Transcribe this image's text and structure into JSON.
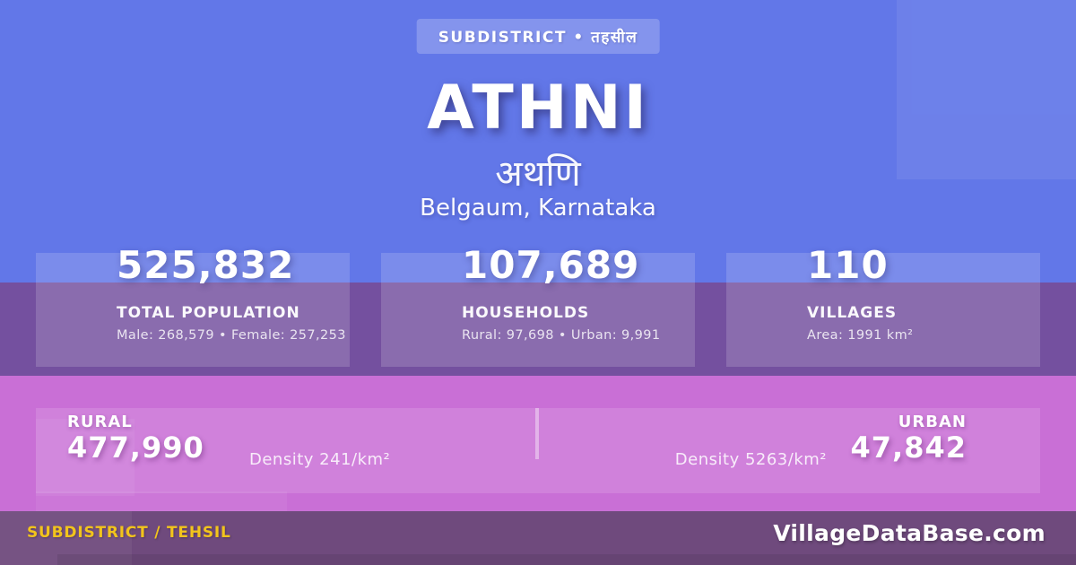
{
  "card": {
    "badge": "SUBDISTRICT • तहसील",
    "title": "ATHNI",
    "title_native": "अथणि",
    "location": "Belgaum, Karnataka"
  },
  "stats": [
    {
      "value": "525,832",
      "label": "TOTAL POPULATION",
      "detail": "Male: 268,579 • Female: 257,253"
    },
    {
      "value": "107,689",
      "label": "HOUSEHOLDS",
      "detail": "Rural: 97,698 • Urban: 9,991"
    },
    {
      "value": "110",
      "label": "VILLAGES",
      "detail": "Area: 1991 km²"
    }
  ],
  "split": {
    "rural_label": "RURAL",
    "rural_value": "477,990",
    "rural_density": "Density 241/km²",
    "urban_label": "URBAN",
    "urban_value": "47,842",
    "urban_density": "Density 5263/km²"
  },
  "footer": {
    "type_label": "SUBDISTRICT / TEHSIL",
    "site": "VillageDataBase.com"
  },
  "colors": {
    "bg-blue": "#6277e8",
    "band-purple": "#74509f",
    "band-pink": "#c96fd6",
    "footer-purple": "#6f4a7d",
    "accent-yellow": "#f2c41c",
    "text-white": "#ffffff"
  }
}
